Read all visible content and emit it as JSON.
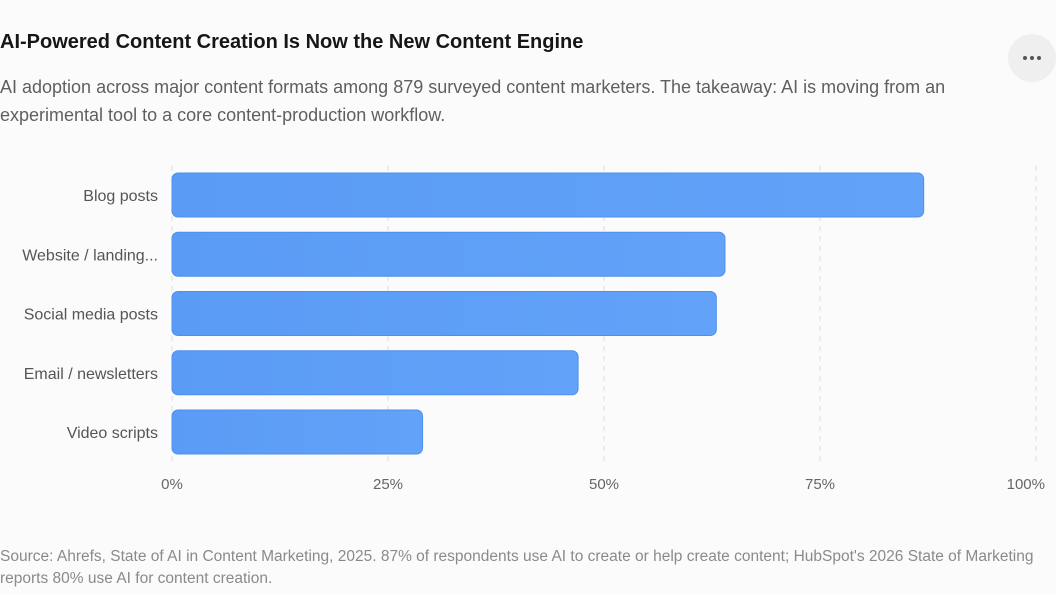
{
  "header": {
    "title": "AI-Powered Content Creation Is Now the New Content Engine",
    "subtitle": "AI adoption across major content formats among 879 surveyed content marketers. The takeaway: AI is moving from an experimental tool to a core content-production workflow.",
    "menu_icon": "more-horizontal-icon"
  },
  "chart_data": {
    "type": "bar",
    "orientation": "horizontal",
    "title": "AI-Powered Content Creation Is Now the New Content Engine",
    "xlabel": "",
    "ylabel": "",
    "categories": [
      "Blog posts",
      "Website / landing...",
      "Social media posts",
      "Email / newsletters",
      "Video scripts"
    ],
    "values": [
      87,
      64,
      63,
      47,
      29
    ],
    "xlim": [
      0,
      100
    ],
    "ticks": [
      "0%",
      "25%",
      "50%",
      "75%",
      "100%"
    ],
    "tick_values": [
      0,
      25,
      50,
      75,
      100
    ],
    "grid": true,
    "legend": "none",
    "colors": {
      "bar": "#5b9df7",
      "bar_edge": "#4d90ec"
    }
  },
  "footer": {
    "source": "Source: Ahrefs, State of AI in Content Marketing, 2025. 87% of respondents use AI to create or help create content; HubSpot's 2026 State of Marketing reports 80% use AI for content creation."
  }
}
